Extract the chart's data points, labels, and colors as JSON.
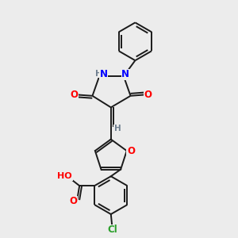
{
  "bg_color": "#ececec",
  "bond_color": "#1a1a1a",
  "bond_width": 1.4,
  "figsize": [
    3.0,
    3.0
  ],
  "dpi": 100,
  "xlim": [
    0,
    10
  ],
  "ylim": [
    0,
    10
  ]
}
